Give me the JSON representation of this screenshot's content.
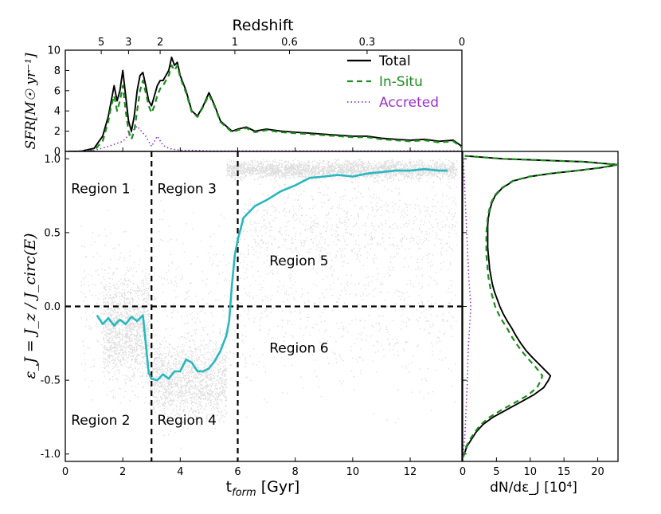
{
  "colors": {
    "total": "#000000",
    "insitu": "#1e8c1e",
    "accreted": "#9932cc",
    "median": "#2ab7bf",
    "axis": "#000000",
    "points": "#000000"
  },
  "chart_data": [
    {
      "panel": "sfr",
      "type": "line",
      "ylabel": "SFR[M☉ yr⁻¹]",
      "top_axis_label": "Redshift",
      "top_axis_ticks": [
        {
          "z": "5",
          "t": 1.25
        },
        {
          "z": "3",
          "t": 2.2
        },
        {
          "z": "2",
          "t": 3.3
        },
        {
          "z": "1",
          "t": 5.9
        },
        {
          "z": "0.6",
          "t": 7.8
        },
        {
          "z": "0.3",
          "t": 10.5
        },
        {
          "z": "0",
          "t": 13.8
        }
      ],
      "xlim": [
        0,
        13.8
      ],
      "ylim": [
        0,
        10
      ],
      "yticks": [
        0,
        2,
        4,
        6,
        8,
        10
      ],
      "legend": {
        "location": "top-right",
        "entries": [
          "Total",
          "In-Situ",
          "Accreted"
        ]
      },
      "series": [
        {
          "name": "Total",
          "style": "solid",
          "x": [
            0.1,
            0.5,
            1.0,
            1.3,
            1.5,
            1.6,
            1.7,
            1.8,
            1.9,
            2.0,
            2.1,
            2.2,
            2.3,
            2.4,
            2.5,
            2.6,
            2.7,
            2.8,
            2.9,
            3.0,
            3.1,
            3.2,
            3.3,
            3.4,
            3.5,
            3.6,
            3.7,
            3.8,
            3.9,
            4.0,
            4.2,
            4.4,
            4.6,
            4.8,
            5.0,
            5.2,
            5.4,
            5.6,
            5.8,
            6.0,
            6.3,
            6.6,
            7.0,
            7.5,
            8.0,
            8.5,
            9.0,
            9.5,
            10.0,
            10.5,
            11.0,
            11.5,
            12.0,
            12.5,
            13.0,
            13.5,
            13.8
          ],
          "y": [
            0,
            0,
            0.3,
            1.5,
            3.5,
            5.0,
            6.5,
            5.0,
            6.0,
            8.0,
            5.5,
            3.0,
            2.0,
            3.5,
            6.0,
            7.5,
            7.8,
            6.5,
            5.0,
            4.5,
            5.5,
            6.5,
            7.0,
            7.0,
            7.5,
            8.0,
            9.3,
            8.5,
            8.8,
            7.5,
            6.0,
            4.0,
            3.5,
            4.5,
            5.8,
            4.5,
            3.0,
            2.5,
            2.0,
            2.2,
            2.4,
            2.0,
            2.2,
            2.0,
            1.9,
            1.8,
            1.7,
            1.6,
            1.5,
            1.5,
            1.3,
            1.2,
            1.1,
            1.2,
            1.0,
            1.1,
            0.5
          ]
        },
        {
          "name": "In-Situ",
          "style": "dashed",
          "x": [
            0.1,
            0.5,
            1.0,
            1.3,
            1.5,
            1.6,
            1.7,
            1.8,
            1.9,
            2.0,
            2.1,
            2.2,
            2.3,
            2.4,
            2.5,
            2.6,
            2.7,
            2.8,
            2.9,
            3.0,
            3.1,
            3.2,
            3.3,
            3.4,
            3.5,
            3.6,
            3.7,
            3.8,
            3.9,
            4.0,
            4.2,
            4.4,
            4.6,
            4.8,
            5.0,
            5.2,
            5.4,
            5.6,
            5.8,
            6.0,
            6.3,
            6.6,
            7.0,
            7.5,
            8.0,
            8.5,
            9.0,
            9.5,
            10.0,
            10.5,
            11.0,
            11.5,
            12.0,
            12.5,
            13.0,
            13.5,
            13.8
          ],
          "y": [
            0,
            0,
            0.1,
            1.0,
            3.0,
            4.5,
            5.5,
            4.0,
            5.0,
            6.5,
            4.0,
            2.0,
            1.2,
            2.0,
            4.0,
            6.0,
            7.0,
            5.8,
            4.5,
            3.8,
            4.5,
            5.5,
            6.2,
            6.5,
            7.0,
            7.5,
            8.5,
            8.0,
            8.5,
            7.3,
            5.8,
            3.9,
            3.4,
            4.4,
            5.6,
            4.4,
            2.9,
            2.4,
            1.9,
            2.1,
            2.3,
            1.9,
            2.1,
            1.9,
            1.8,
            1.7,
            1.6,
            1.5,
            1.4,
            1.4,
            1.2,
            1.1,
            1.0,
            1.1,
            0.9,
            1.0,
            0.4
          ]
        },
        {
          "name": "Accreted",
          "style": "dotted",
          "x": [
            0.1,
            1.0,
            1.5,
            2.0,
            2.5,
            2.8,
            3.0,
            3.2,
            3.4,
            3.6,
            3.8,
            4.0,
            4.5,
            5.0,
            6.0,
            8.0,
            10.0,
            12.0,
            13.8
          ],
          "y": [
            0,
            0.1,
            0.5,
            1.0,
            2.5,
            1.5,
            0.5,
            1.5,
            0.6,
            0.3,
            0.2,
            0.1,
            0.1,
            0.05,
            0.05,
            0.05,
            0.05,
            0.05,
            0.05
          ]
        }
      ]
    },
    {
      "panel": "circularity",
      "type": "scatter",
      "xlabel": "t_form [Gyr]",
      "ylabel": "ε_J = J_z / J_circ(E)",
      "xlim": [
        0,
        13.8
      ],
      "ylim": [
        -1.05,
        1.05
      ],
      "xticks": [
        0,
        2,
        4,
        6,
        8,
        10,
        12
      ],
      "yticks": [
        -1.0,
        -0.5,
        0.0,
        0.5,
        1.0
      ],
      "divider_lines": {
        "vertical_t": [
          3.0,
          6.0
        ],
        "horizontal_eps": [
          0.0
        ]
      },
      "regions": [
        {
          "label": "Region 1",
          "t": 0.2,
          "eps": 0.8
        },
        {
          "label": "Region 2",
          "t": 0.2,
          "eps": -0.77
        },
        {
          "label": "Region 3",
          "t": 3.2,
          "eps": 0.8
        },
        {
          "label": "Region 4",
          "t": 3.2,
          "eps": -0.77
        },
        {
          "label": "Region 5",
          "t": 7.1,
          "eps": 0.31
        },
        {
          "label": "Region 6",
          "t": 7.1,
          "eps": -0.28
        }
      ],
      "median_curve": {
        "name": "median",
        "x": [
          1.1,
          1.3,
          1.5,
          1.7,
          1.9,
          2.1,
          2.3,
          2.5,
          2.7,
          2.8,
          2.9,
          3.0,
          3.2,
          3.4,
          3.6,
          3.8,
          4.0,
          4.2,
          4.4,
          4.6,
          4.8,
          5.0,
          5.2,
          5.4,
          5.6,
          5.7,
          5.8,
          5.9,
          6.0,
          6.2,
          6.4,
          6.6,
          7.0,
          7.5,
          8.0,
          8.5,
          9.0,
          9.5,
          10.0,
          10.5,
          11.0,
          11.5,
          12.0,
          12.5,
          13.0,
          13.3
        ],
        "y": [
          -0.06,
          -0.12,
          -0.08,
          -0.13,
          -0.09,
          -0.12,
          -0.07,
          -0.1,
          -0.06,
          -0.25,
          -0.45,
          -0.49,
          -0.5,
          -0.46,
          -0.49,
          -0.44,
          -0.44,
          -0.36,
          -0.38,
          -0.44,
          -0.44,
          -0.42,
          -0.37,
          -0.3,
          -0.2,
          -0.1,
          0.15,
          0.35,
          0.45,
          0.6,
          0.64,
          0.68,
          0.72,
          0.78,
          0.82,
          0.87,
          0.88,
          0.89,
          0.88,
          0.9,
          0.91,
          0.92,
          0.92,
          0.93,
          0.92,
          0.92
        ]
      }
    },
    {
      "panel": "distribution",
      "type": "line",
      "xlabel": "dN/dε_J [10⁴]",
      "xlim": [
        0,
        23
      ],
      "ylim": [
        -1.05,
        1.05
      ],
      "xticks": [
        0,
        5,
        10,
        15,
        20
      ],
      "series": [
        {
          "name": "Total",
          "style": "solid",
          "eps": [
            -1.02,
            -0.95,
            -0.9,
            -0.85,
            -0.8,
            -0.75,
            -0.7,
            -0.65,
            -0.6,
            -0.55,
            -0.5,
            -0.47,
            -0.45,
            -0.4,
            -0.35,
            -0.3,
            -0.25,
            -0.2,
            -0.15,
            -0.1,
            -0.05,
            0.0,
            0.05,
            0.1,
            0.15,
            0.2,
            0.25,
            0.3,
            0.35,
            0.4,
            0.45,
            0.5,
            0.55,
            0.6,
            0.65,
            0.7,
            0.75,
            0.8,
            0.85,
            0.88,
            0.9,
            0.92,
            0.94,
            0.96,
            0.98,
            1.0,
            1.02
          ],
          "values": [
            0.1,
            0.6,
            1.3,
            2.0,
            3.0,
            4.5,
            6.5,
            8.5,
            10.5,
            12.0,
            12.7,
            13.0,
            12.6,
            11.5,
            10.4,
            9.4,
            8.6,
            7.9,
            7.3,
            6.6,
            6.0,
            5.5,
            5.1,
            4.7,
            4.4,
            4.2,
            4.0,
            3.9,
            3.8,
            3.7,
            3.7,
            3.7,
            3.7,
            3.8,
            4.0,
            4.3,
            4.8,
            5.8,
            7.5,
            10.0,
            13.0,
            17.0,
            20.5,
            23.0,
            18.0,
            6.0,
            0.3
          ]
        },
        {
          "name": "In-Situ",
          "style": "dashed",
          "eps": [
            -1.02,
            -0.95,
            -0.9,
            -0.85,
            -0.8,
            -0.75,
            -0.7,
            -0.65,
            -0.6,
            -0.55,
            -0.5,
            -0.47,
            -0.45,
            -0.4,
            -0.35,
            -0.3,
            -0.25,
            -0.2,
            -0.15,
            -0.1,
            -0.05,
            0.0,
            0.05,
            0.1,
            0.15,
            0.2,
            0.25,
            0.3,
            0.35,
            0.4,
            0.45,
            0.5,
            0.55,
            0.6,
            0.65,
            0.7,
            0.75,
            0.8,
            0.85,
            0.88,
            0.9,
            0.92,
            0.94,
            0.96,
            0.98,
            1.0,
            1.02
          ],
          "values": [
            0.1,
            0.5,
            1.1,
            1.8,
            2.7,
            4.0,
            5.8,
            7.8,
            9.7,
            11.0,
            11.6,
            11.8,
            11.5,
            10.6,
            9.6,
            8.7,
            7.9,
            7.2,
            6.6,
            5.9,
            5.3,
            4.8,
            4.5,
            4.2,
            4.0,
            3.8,
            3.7,
            3.6,
            3.5,
            3.5,
            3.5,
            3.5,
            3.6,
            3.7,
            3.9,
            4.2,
            4.7,
            5.7,
            7.4,
            9.9,
            12.9,
            16.9,
            20.4,
            22.9,
            17.9,
            5.9,
            0.3
          ]
        },
        {
          "name": "Accreted",
          "style": "dotted",
          "eps": [
            -1.02,
            -0.9,
            -0.7,
            -0.5,
            -0.3,
            -0.15,
            0.0,
            0.2,
            0.4,
            0.6,
            0.8,
            0.9,
            1.0,
            1.02
          ],
          "values": [
            0.05,
            0.3,
            0.5,
            0.7,
            0.8,
            1.0,
            1.2,
            0.9,
            0.7,
            0.5,
            0.3,
            0.2,
            0.1,
            0.05
          ]
        }
      ]
    }
  ]
}
